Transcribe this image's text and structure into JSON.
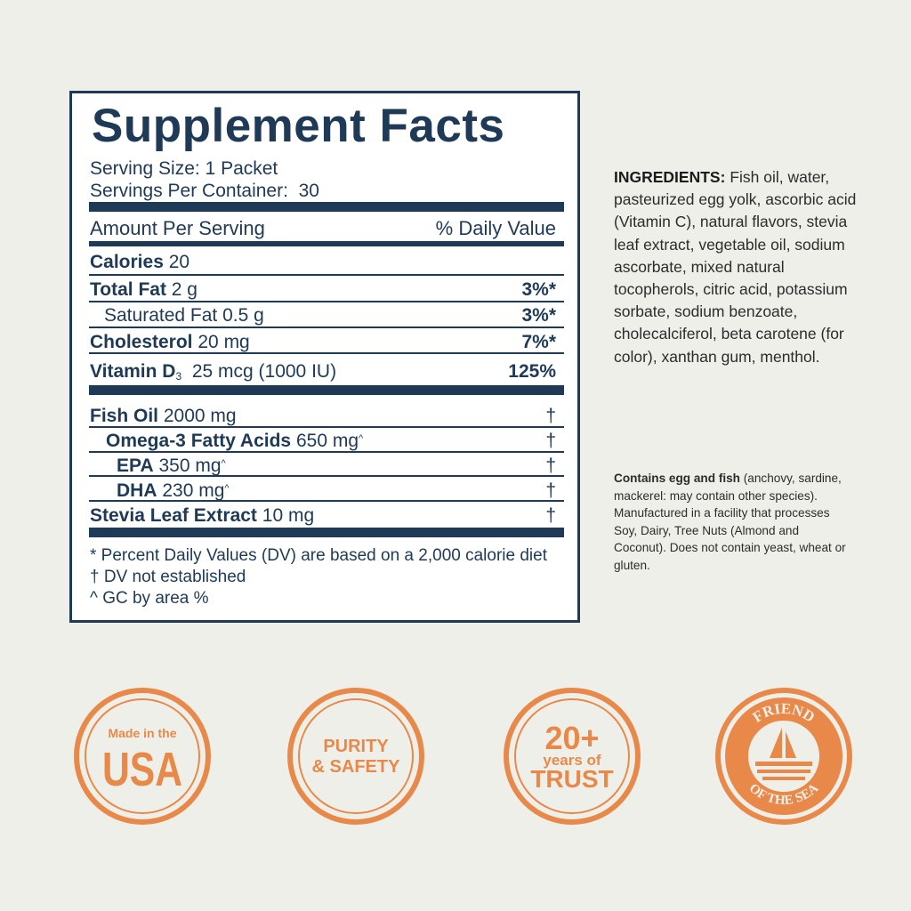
{
  "facts": {
    "title": "Supplement Facts",
    "serving_size": "Serving Size: 1 Packet",
    "servings_per_container": "Servings Per Container:  30",
    "amount_header": "Amount Per Serving",
    "dv_header": "% Daily Value",
    "nutrients": [
      {
        "name": "Calories",
        "amount": "20",
        "dv": ""
      },
      {
        "name": "Total Fat",
        "amount": "2 g",
        "dv": "3%*"
      },
      {
        "name": "Saturated Fat",
        "amount": "0.5 g",
        "dv": "3%*"
      },
      {
        "name": "Cholesterol",
        "amount": "20 mg",
        "dv": "7%*"
      },
      {
        "name": "Vitamin D",
        "subscript": "3",
        "amount": "25 mcg (1000 IU)",
        "dv": "125%"
      }
    ],
    "ingredients": [
      {
        "name": "Fish Oil",
        "amount": "2000 mg",
        "dv": "†"
      },
      {
        "name": "Omega-3 Fatty Acids",
        "amount": "650 mg",
        "mark": "^",
        "dv": "†"
      },
      {
        "name": "EPA",
        "amount": "350 mg",
        "mark": "^",
        "dv": "†"
      },
      {
        "name": "DHA",
        "amount": "230 mg",
        "mark": "^",
        "dv": "†"
      },
      {
        "name": "Stevia Leaf Extract",
        "amount": "10 mg",
        "dv": "†"
      }
    ],
    "footnotes": [
      "* Percent Daily Values (DV) are based on a 2,000 calorie diet",
      "† DV not established",
      "^ GC by area %"
    ]
  },
  "ingredients_panel": {
    "label": "INGREDIENTS:",
    "text": "Fish oil, water, pasteurized egg yolk, ascorbic acid (Vitamin C), natural flavors, stevia leaf extract, vegetable oil, sodium ascorbate, mixed natural tocopherols, citric acid, potassium sorbate, sodium benzoate, cholecalciferol, beta carotene (for color), xanthan gum, menthol.",
    "allergen_label": "Contains egg and fish",
    "allergen_text": "(anchovy, sardine, mackerel: may contain other species). Manufactured in a facility that processes Soy, Dairy, Tree Nuts (Almond and Coconut). Does not contain yeast, wheat or gluten."
  },
  "badges": [
    {
      "lines": [
        "Made in the",
        "USA"
      ]
    },
    {
      "lines": [
        "PURITY",
        "& SAFETY"
      ]
    },
    {
      "lines": [
        "20+",
        "years of",
        "TRUST"
      ]
    },
    {
      "lines": [
        "FRIEND",
        "OF THE SEA"
      ]
    }
  ],
  "colors": {
    "navy": "#1e3a56",
    "orange": "#e8894a",
    "background": "#efefe9"
  }
}
